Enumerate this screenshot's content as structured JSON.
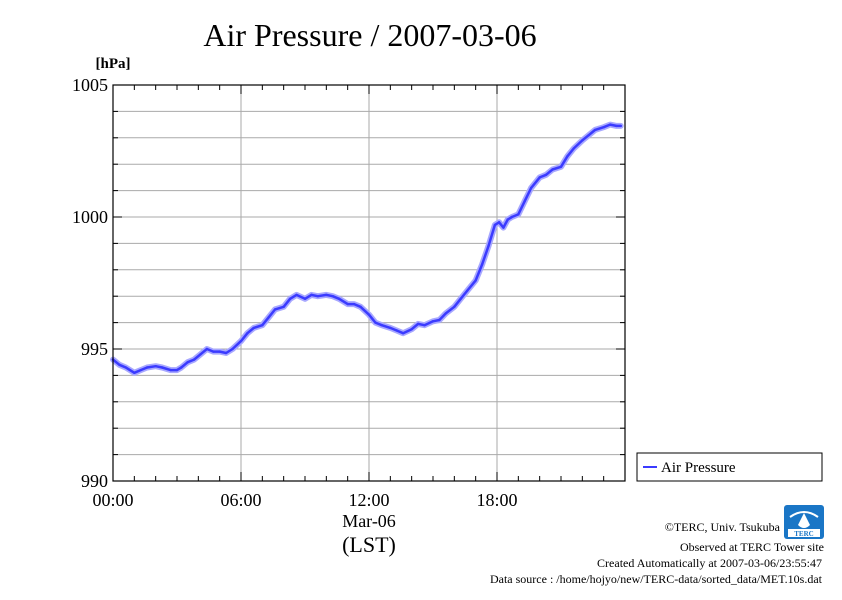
{
  "page": {
    "colors": {
      "series": "#3b3bff",
      "series_halo": "#a8a8ff",
      "grid": "#aaaaaa",
      "logo": "#1a76c6"
    }
  },
  "chart_data": {
    "type": "line",
    "title": "Air Pressure / 2007-03-06",
    "ylabel": "[hPa]",
    "xlabel": "(LST)",
    "x_sublabel": "Mar-06",
    "ylim": [
      990,
      1005
    ],
    "xlim_hours": [
      0,
      24
    ],
    "grid": true,
    "x_ticks": [
      {
        "hour": 0,
        "label": "00:00"
      },
      {
        "hour": 6,
        "label": "06:00"
      },
      {
        "hour": 12,
        "label": "12:00"
      },
      {
        "hour": 18,
        "label": "18:00"
      }
    ],
    "y_ticks": [
      {
        "value": 990,
        "label": "990"
      },
      {
        "value": 995,
        "label": "995"
      },
      {
        "value": 1000,
        "label": "1000"
      },
      {
        "value": 1005,
        "label": "1005"
      }
    ],
    "legend": {
      "position": "right",
      "entries": [
        "Air Pressure"
      ]
    },
    "series": [
      {
        "name": "Air Pressure",
        "x": [
          0.0,
          0.3,
          0.6,
          1.0,
          1.3,
          1.6,
          2.0,
          2.3,
          2.7,
          3.0,
          3.2,
          3.5,
          3.8,
          4.1,
          4.4,
          4.7,
          5.0,
          5.3,
          5.6,
          6.0,
          6.3,
          6.6,
          7.0,
          7.3,
          7.6,
          8.0,
          8.3,
          8.6,
          9.0,
          9.3,
          9.6,
          10.0,
          10.3,
          10.6,
          11.0,
          11.3,
          11.6,
          12.0,
          12.3,
          12.6,
          13.0,
          13.3,
          13.6,
          14.0,
          14.3,
          14.6,
          15.0,
          15.3,
          15.6,
          16.0,
          16.3,
          16.6,
          17.0,
          17.3,
          17.6,
          17.9,
          18.1,
          18.3,
          18.5,
          18.7,
          19.0,
          19.3,
          19.6,
          20.0,
          20.3,
          20.6,
          21.0,
          21.3,
          21.6,
          22.0,
          22.3,
          22.6,
          23.0,
          23.3,
          23.6,
          23.8
        ],
        "y": [
          994.6,
          994.4,
          994.3,
          994.1,
          994.2,
          994.3,
          994.35,
          994.3,
          994.2,
          994.2,
          994.3,
          994.5,
          994.6,
          994.8,
          995.0,
          994.9,
          994.9,
          994.85,
          995.0,
          995.3,
          995.6,
          995.8,
          995.9,
          996.2,
          996.5,
          996.6,
          996.9,
          997.05,
          996.9,
          997.05,
          997.0,
          997.05,
          997.0,
          996.9,
          996.7,
          996.7,
          996.6,
          996.3,
          996.0,
          995.9,
          995.8,
          995.7,
          995.6,
          995.75,
          995.95,
          995.9,
          996.05,
          996.1,
          996.35,
          996.6,
          996.9,
          997.2,
          997.6,
          998.2,
          998.9,
          999.7,
          999.8,
          999.6,
          999.9,
          1000.0,
          1000.1,
          1000.6,
          1001.1,
          1001.5,
          1001.6,
          1001.8,
          1001.9,
          1002.3,
          1002.6,
          1002.9,
          1003.1,
          1003.3,
          1003.4,
          1003.5,
          1003.45,
          1003.45
        ]
      }
    ]
  },
  "footer": {
    "copyright": "©TERC, Univ. Tsukuba",
    "observed": "Observed at TERC Tower site",
    "created": "Created Automatically at 2007-03-06/23:55:47",
    "source": "Data source : /home/hojyo/new/TERC-data/sorted_data/MET.10s.dat",
    "logo_text": "TERC"
  }
}
